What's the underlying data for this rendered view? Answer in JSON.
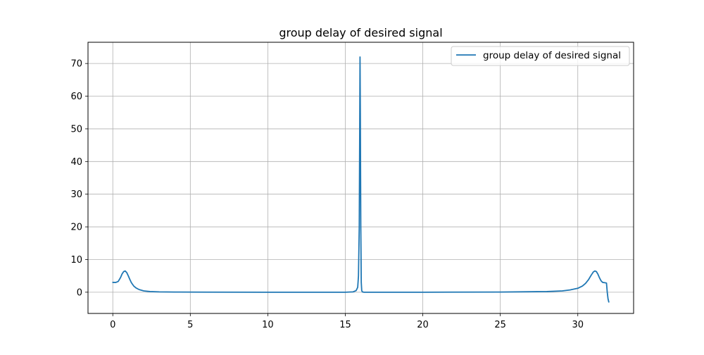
{
  "chart_data": {
    "type": "line",
    "title": "group delay of desired signal",
    "xlabel": "",
    "ylabel": "",
    "xlim": [
      -1.6,
      33.6
    ],
    "ylim": [
      -6.5,
      76.5
    ],
    "xticks": [
      0,
      5,
      10,
      15,
      20,
      25,
      30
    ],
    "yticks": [
      0,
      10,
      20,
      30,
      40,
      50,
      60,
      70
    ],
    "grid": true,
    "legend_position": "top-right",
    "series": [
      {
        "name": "group delay of desired signal",
        "color": "#1f77b4",
        "x": [
          0,
          0.2,
          0.35,
          0.5,
          0.6,
          0.7,
          0.8,
          0.9,
          1.0,
          1.1,
          1.2,
          1.35,
          1.5,
          1.7,
          2.0,
          2.4,
          3.0,
          4.0,
          6.0,
          10.0,
          13.0,
          15.0,
          15.5,
          15.7,
          15.8,
          15.85,
          15.9,
          15.93,
          15.95,
          15.97,
          16.0,
          16.03,
          16.06,
          16.1,
          16.2,
          16.5,
          20.0,
          25.0,
          28.0,
          29.0,
          29.5,
          30.0,
          30.3,
          30.5,
          30.7,
          30.85,
          31.0,
          31.1,
          31.2,
          31.3,
          31.4,
          31.5,
          31.6,
          31.75,
          31.85,
          31.9,
          31.95,
          32.0
        ],
        "y": [
          3.0,
          3.0,
          3.3,
          4.5,
          5.6,
          6.3,
          6.5,
          6.0,
          5.0,
          3.9,
          2.9,
          1.9,
          1.3,
          0.8,
          0.4,
          0.2,
          0.1,
          0.05,
          0.02,
          0.0,
          0.0,
          0.0,
          0.1,
          0.5,
          1.5,
          5.0,
          20.0,
          50.0,
          72.0,
          55.0,
          20.0,
          3.0,
          0.5,
          0.1,
          0.0,
          0.0,
          0.0,
          0.05,
          0.2,
          0.4,
          0.7,
          1.2,
          1.9,
          2.7,
          3.9,
          5.1,
          6.2,
          6.5,
          6.3,
          5.5,
          4.4,
          3.5,
          3.0,
          2.9,
          2.8,
          0.0,
          -2.0,
          -3.0
        ]
      }
    ]
  }
}
